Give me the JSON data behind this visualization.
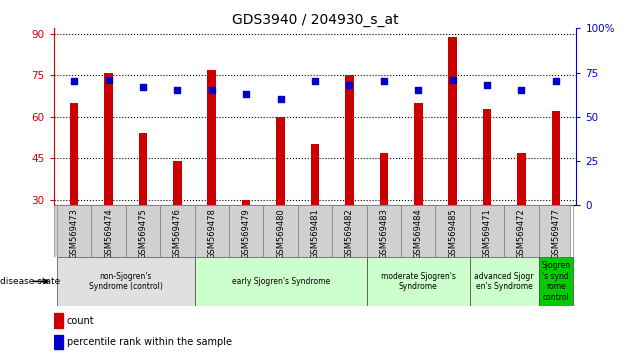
{
  "title": "GDS3940 / 204930_s_at",
  "samples": [
    "GSM569473",
    "GSM569474",
    "GSM569475",
    "GSM569476",
    "GSM569478",
    "GSM569479",
    "GSM569480",
    "GSM569481",
    "GSM569482",
    "GSM569483",
    "GSM569484",
    "GSM569485",
    "GSM569471",
    "GSM569472",
    "GSM569477"
  ],
  "counts": [
    65,
    76,
    54,
    44,
    77,
    30,
    60,
    50,
    75,
    47,
    65,
    89,
    63,
    47,
    62
  ],
  "percentile_ranks": [
    70,
    71,
    67,
    65,
    65,
    63,
    60,
    70,
    68,
    70,
    65,
    71,
    68,
    65,
    70
  ],
  "ylim_left": [
    28,
    92
  ],
  "ylim_right": [
    0,
    100
  ],
  "yticks_left": [
    30,
    45,
    60,
    75,
    90
  ],
  "yticks_right": [
    0,
    25,
    50,
    75,
    100
  ],
  "bar_color": "#cc0000",
  "scatter_color": "#0000cc",
  "groups": [
    {
      "label": "non-Sjogren's\nSyndrome (control)",
      "start": 0,
      "end": 3,
      "color": "#e0e0e0"
    },
    {
      "label": "early Sjogren's Syndrome",
      "start": 4,
      "end": 8,
      "color": "#ccffcc"
    },
    {
      "label": "moderate Sjogren's\nSyndrome",
      "start": 9,
      "end": 11,
      "color": "#ccffcc"
    },
    {
      "label": "advanced Sjogr\nen's Syndrome",
      "start": 12,
      "end": 13,
      "color": "#ccffcc"
    },
    {
      "label": "Sjogren\n's synd\nrome\ncontrol",
      "start": 14,
      "end": 14,
      "color": "#00cc00"
    }
  ],
  "bar_color_left": "#cc0000",
  "tick_color_left": "#cc0000",
  "tick_color_right": "#0000cc",
  "bar_width": 0.25,
  "sample_box_color": "#d0d0d0",
  "legend_marker_size": 6
}
